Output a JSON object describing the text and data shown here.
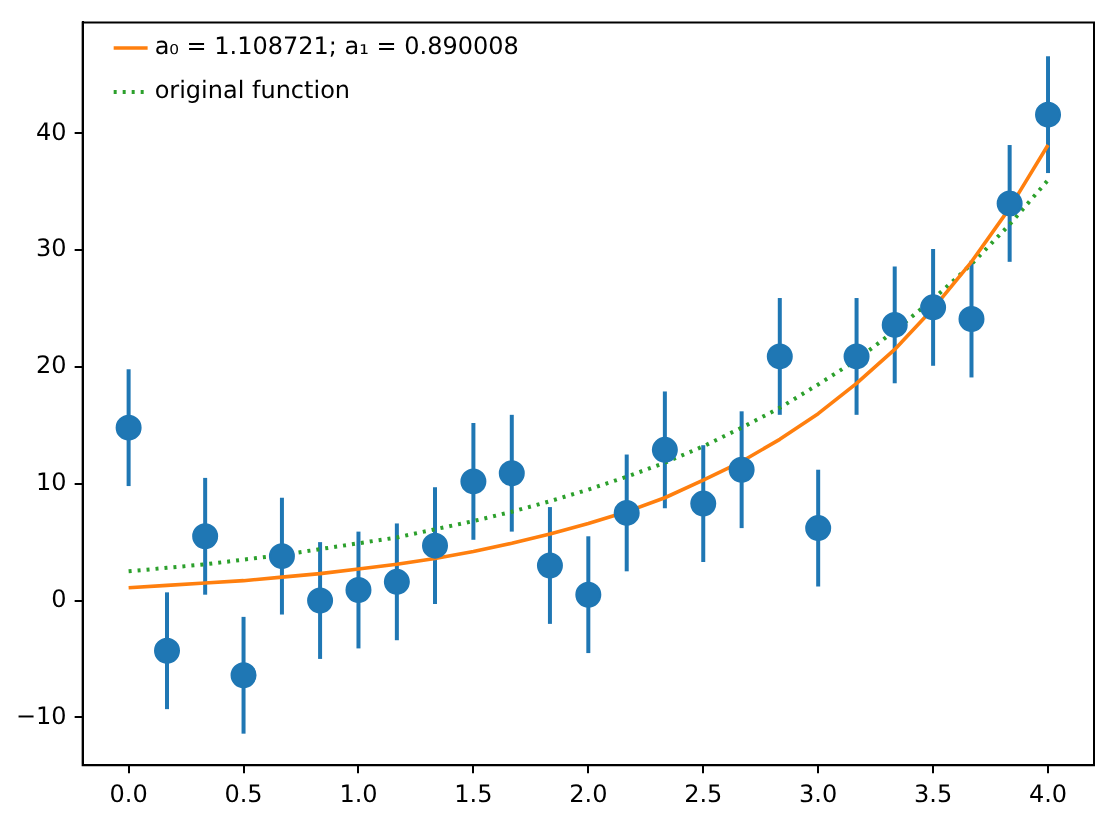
{
  "chart_data": {
    "type": "scatter",
    "x": [
      0,
      0.167,
      0.333,
      0.5,
      0.667,
      0.833,
      1,
      1.167,
      1.333,
      1.5,
      1.667,
      1.833,
      2,
      2.167,
      2.333,
      2.5,
      2.667,
      2.833,
      3,
      3.167,
      3.333,
      3.5,
      3.667,
      3.833,
      4
    ],
    "series": [
      {
        "color": "#1f77b4",
        "marker": "circle",
        "values": [
          14.8,
          -4.3,
          5.5,
          -6.4,
          3.8,
          0,
          0.9,
          1.6,
          4.7,
          10.2,
          10.9,
          3.0,
          0.5,
          7.5,
          12.9,
          8.3,
          11.2,
          20.9,
          6.2,
          20.9,
          23.6,
          25.1,
          24.1,
          34.0,
          41.6
        ],
        "errors": [
          5,
          5,
          5,
          5,
          5,
          5,
          5,
          5,
          5,
          5,
          5,
          5,
          5,
          5,
          5,
          5,
          5,
          5,
          5,
          5,
          5,
          5,
          5,
          5,
          5
        ]
      },
      {
        "type": "line",
        "name": "a₀ = 1.108721; a₁ = 0.890008",
        "color": "#ff7f0e",
        "line_style": "solid",
        "marker": "none",
        "values": [
          1.1,
          1.3,
          1.5,
          1.7,
          2.0,
          2.3,
          2.7,
          3.1,
          3.6,
          4.2,
          4.9,
          5.7,
          6.6,
          7.6,
          8.8,
          10.3,
          11.9,
          13.8,
          16.0,
          18.6,
          21.5,
          25.0,
          29.0,
          33.6,
          39.0
        ]
      },
      {
        "type": "line",
        "name": "original function",
        "color": "#2ca02c",
        "line_style": "dotted",
        "marker": "none",
        "values": [
          2.5,
          2.8,
          3.1,
          3.5,
          3.9,
          4.4,
          4.9,
          5.4,
          6.1,
          6.8,
          7.6,
          8.5,
          9.5,
          10.6,
          11.8,
          13.2,
          14.8,
          16.5,
          18.5,
          20.6,
          23.1,
          25.8,
          28.8,
          32.2,
          36.0
        ]
      }
    ],
    "xlim": [
      -0.2,
      4.2
    ],
    "ylim": [
      -14.1,
      49.5
    ],
    "xticks": [
      {
        "value": 0,
        "label": "0.0"
      },
      {
        "value": 0.5,
        "label": "0.5"
      },
      {
        "value": 1,
        "label": "1.0"
      },
      {
        "value": 1.5,
        "label": "1.5"
      },
      {
        "value": 2,
        "label": "2.0"
      },
      {
        "value": 2.5,
        "label": "2.5"
      },
      {
        "value": 3,
        "label": "3.0"
      },
      {
        "value": 3.5,
        "label": "3.5"
      },
      {
        "value": 4,
        "label": "4.0"
      }
    ],
    "yticks": [
      -10,
      0,
      10,
      20,
      30,
      40
    ],
    "grid": false,
    "legend": "top left"
  }
}
